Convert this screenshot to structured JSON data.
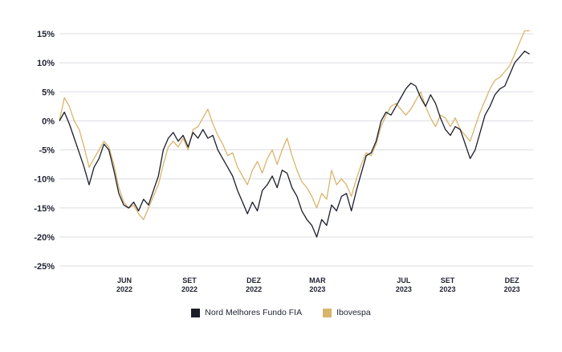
{
  "chart_data": {
    "type": "line",
    "ylim": [
      -25,
      15
    ],
    "yticks": [
      {
        "value": 15,
        "label": "15%"
      },
      {
        "value": 10,
        "label": "10%"
      },
      {
        "value": 5,
        "label": "5%"
      },
      {
        "value": 0,
        "label": "0%"
      },
      {
        "value": -5,
        "label": "-5%"
      },
      {
        "value": -10,
        "label": "-10%"
      },
      {
        "value": -15,
        "label": "-15%"
      },
      {
        "value": -20,
        "label": "-20%"
      },
      {
        "value": -25,
        "label": "-25%"
      }
    ],
    "xlim": [
      "2022-03-01",
      "2023-12-31"
    ],
    "xticks": [
      {
        "date": "2022-06-01",
        "month": "JUN",
        "year": "2022"
      },
      {
        "date": "2022-09-01",
        "month": "SET",
        "year": "2022"
      },
      {
        "date": "2022-12-01",
        "month": "DEZ",
        "year": "2022"
      },
      {
        "date": "2023-03-01",
        "month": "MAR",
        "year": "2023"
      },
      {
        "date": "2023-07-01",
        "month": "JUL",
        "year": "2023"
      },
      {
        "date": "2023-09-01",
        "month": "SET",
        "year": "2023"
      },
      {
        "date": "2023-12-01",
        "month": "DEZ",
        "year": "2023"
      }
    ],
    "grid": true,
    "legend_position": "bottom-center",
    "series": [
      {
        "name": "Nord Melhores Fundo FIA",
        "color": "#1b1d2b",
        "points": [
          [
            "2022-03-01",
            0.0
          ],
          [
            "2022-03-08",
            1.5
          ],
          [
            "2022-03-15",
            -0.5
          ],
          [
            "2022-03-22",
            -3.0
          ],
          [
            "2022-03-29",
            -5.5
          ],
          [
            "2022-04-05",
            -8.0
          ],
          [
            "2022-04-12",
            -11.0
          ],
          [
            "2022-04-19",
            -8.0
          ],
          [
            "2022-04-26",
            -6.5
          ],
          [
            "2022-05-03",
            -4.0
          ],
          [
            "2022-05-10",
            -5.0
          ],
          [
            "2022-05-17",
            -8.5
          ],
          [
            "2022-05-24",
            -12.5
          ],
          [
            "2022-05-31",
            -14.5
          ],
          [
            "2022-06-07",
            -15.0
          ],
          [
            "2022-06-14",
            -14.0
          ],
          [
            "2022-06-21",
            -15.5
          ],
          [
            "2022-06-28",
            -13.5
          ],
          [
            "2022-07-05",
            -14.5
          ],
          [
            "2022-07-12",
            -12.0
          ],
          [
            "2022-07-19",
            -9.5
          ],
          [
            "2022-07-26",
            -5.0
          ],
          [
            "2022-08-02",
            -3.0
          ],
          [
            "2022-08-09",
            -2.0
          ],
          [
            "2022-08-16",
            -3.5
          ],
          [
            "2022-08-23",
            -2.5
          ],
          [
            "2022-08-30",
            -4.5
          ],
          [
            "2022-09-06",
            -2.0
          ],
          [
            "2022-09-13",
            -3.0
          ],
          [
            "2022-09-20",
            -1.5
          ],
          [
            "2022-09-27",
            -3.0
          ],
          [
            "2022-10-04",
            -2.5
          ],
          [
            "2022-10-11",
            -5.0
          ],
          [
            "2022-10-18",
            -6.5
          ],
          [
            "2022-10-25",
            -8.0
          ],
          [
            "2022-11-01",
            -9.5
          ],
          [
            "2022-11-08",
            -12.0
          ],
          [
            "2022-11-15",
            -14.0
          ],
          [
            "2022-11-22",
            -16.0
          ],
          [
            "2022-11-29",
            -14.0
          ],
          [
            "2022-12-06",
            -15.5
          ],
          [
            "2022-12-13",
            -12.0
          ],
          [
            "2022-12-20",
            -11.0
          ],
          [
            "2022-12-27",
            -9.5
          ],
          [
            "2023-01-03",
            -11.5
          ],
          [
            "2023-01-10",
            -8.5
          ],
          [
            "2023-01-17",
            -9.0
          ],
          [
            "2023-01-24",
            -11.5
          ],
          [
            "2023-01-31",
            -13.0
          ],
          [
            "2023-02-07",
            -15.5
          ],
          [
            "2023-02-14",
            -17.0
          ],
          [
            "2023-02-21",
            -18.0
          ],
          [
            "2023-02-28",
            -20.0
          ],
          [
            "2023-03-07",
            -17.0
          ],
          [
            "2023-03-14",
            -18.0
          ],
          [
            "2023-03-21",
            -14.5
          ],
          [
            "2023-03-28",
            -15.5
          ],
          [
            "2023-04-04",
            -13.0
          ],
          [
            "2023-04-11",
            -12.5
          ],
          [
            "2023-04-18",
            -15.5
          ],
          [
            "2023-04-25",
            -12.0
          ],
          [
            "2023-05-02",
            -9.0
          ],
          [
            "2023-05-09",
            -6.0
          ],
          [
            "2023-05-16",
            -5.5
          ],
          [
            "2023-05-23",
            -3.5
          ],
          [
            "2023-05-30",
            0.0
          ],
          [
            "2023-06-06",
            1.5
          ],
          [
            "2023-06-13",
            1.0
          ],
          [
            "2023-06-20",
            2.5
          ],
          [
            "2023-06-27",
            4.0
          ],
          [
            "2023-07-04",
            5.5
          ],
          [
            "2023-07-11",
            6.5
          ],
          [
            "2023-07-18",
            6.0
          ],
          [
            "2023-07-25",
            4.0
          ],
          [
            "2023-08-01",
            2.5
          ],
          [
            "2023-08-08",
            4.5
          ],
          [
            "2023-08-15",
            3.0
          ],
          [
            "2023-08-22",
            0.5
          ],
          [
            "2023-08-29",
            -1.5
          ],
          [
            "2023-09-05",
            -2.5
          ],
          [
            "2023-09-12",
            -1.0
          ],
          [
            "2023-09-19",
            -1.5
          ],
          [
            "2023-09-26",
            -4.0
          ],
          [
            "2023-10-03",
            -6.5
          ],
          [
            "2023-10-10",
            -5.0
          ],
          [
            "2023-10-17",
            -2.0
          ],
          [
            "2023-10-24",
            1.0
          ],
          [
            "2023-10-31",
            2.5
          ],
          [
            "2023-11-07",
            4.5
          ],
          [
            "2023-11-14",
            5.5
          ],
          [
            "2023-11-21",
            6.0
          ],
          [
            "2023-11-28",
            8.0
          ],
          [
            "2023-12-05",
            10.0
          ],
          [
            "2023-12-12",
            11.0
          ],
          [
            "2023-12-19",
            12.0
          ],
          [
            "2023-12-26",
            11.5
          ]
        ]
      },
      {
        "name": "Ibovespa",
        "color": "#d9b46b",
        "points": [
          [
            "2022-03-01",
            0.0
          ],
          [
            "2022-03-08",
            4.0
          ],
          [
            "2022-03-15",
            2.5
          ],
          [
            "2022-03-22",
            0.0
          ],
          [
            "2022-03-29",
            -1.5
          ],
          [
            "2022-04-05",
            -4.5
          ],
          [
            "2022-04-12",
            -8.0
          ],
          [
            "2022-04-19",
            -6.5
          ],
          [
            "2022-04-26",
            -5.0
          ],
          [
            "2022-05-03",
            -3.5
          ],
          [
            "2022-05-10",
            -4.5
          ],
          [
            "2022-05-17",
            -7.5
          ],
          [
            "2022-05-24",
            -11.5
          ],
          [
            "2022-05-31",
            -14.0
          ],
          [
            "2022-06-07",
            -15.0
          ],
          [
            "2022-06-14",
            -14.5
          ],
          [
            "2022-06-21",
            -16.0
          ],
          [
            "2022-06-28",
            -17.0
          ],
          [
            "2022-07-05",
            -15.0
          ],
          [
            "2022-07-12",
            -13.0
          ],
          [
            "2022-07-19",
            -11.0
          ],
          [
            "2022-07-26",
            -7.5
          ],
          [
            "2022-08-02",
            -4.5
          ],
          [
            "2022-08-09",
            -3.5
          ],
          [
            "2022-08-16",
            -4.5
          ],
          [
            "2022-08-23",
            -3.0
          ],
          [
            "2022-08-30",
            -5.0
          ],
          [
            "2022-09-06",
            -1.5
          ],
          [
            "2022-09-13",
            -1.0
          ],
          [
            "2022-09-20",
            0.5
          ],
          [
            "2022-09-27",
            2.0
          ],
          [
            "2022-10-04",
            -0.5
          ],
          [
            "2022-10-11",
            -2.5
          ],
          [
            "2022-10-18",
            -4.0
          ],
          [
            "2022-10-25",
            -6.0
          ],
          [
            "2022-11-01",
            -5.5
          ],
          [
            "2022-11-08",
            -8.0
          ],
          [
            "2022-11-15",
            -9.5
          ],
          [
            "2022-11-22",
            -11.0
          ],
          [
            "2022-11-29",
            -8.5
          ],
          [
            "2022-12-06",
            -7.0
          ],
          [
            "2022-12-13",
            -9.0
          ],
          [
            "2022-12-20",
            -6.5
          ],
          [
            "2022-12-27",
            -5.0
          ],
          [
            "2023-01-03",
            -7.5
          ],
          [
            "2023-01-10",
            -5.0
          ],
          [
            "2023-01-17",
            -3.0
          ],
          [
            "2023-01-24",
            -6.0
          ],
          [
            "2023-01-31",
            -8.5
          ],
          [
            "2023-02-07",
            -10.5
          ],
          [
            "2023-02-14",
            -11.5
          ],
          [
            "2023-02-21",
            -13.0
          ],
          [
            "2023-02-28",
            -15.0
          ],
          [
            "2023-03-07",
            -12.5
          ],
          [
            "2023-03-14",
            -13.5
          ],
          [
            "2023-03-21",
            -8.5
          ],
          [
            "2023-03-28",
            -11.0
          ],
          [
            "2023-04-04",
            -10.0
          ],
          [
            "2023-04-11",
            -11.0
          ],
          [
            "2023-04-18",
            -13.0
          ],
          [
            "2023-04-25",
            -10.0
          ],
          [
            "2023-05-02",
            -7.5
          ],
          [
            "2023-05-09",
            -5.5
          ],
          [
            "2023-05-16",
            -6.0
          ],
          [
            "2023-05-23",
            -4.0
          ],
          [
            "2023-05-30",
            -1.0
          ],
          [
            "2023-06-06",
            1.0
          ],
          [
            "2023-06-13",
            2.5
          ],
          [
            "2023-06-20",
            3.0
          ],
          [
            "2023-06-27",
            2.0
          ],
          [
            "2023-07-04",
            1.0
          ],
          [
            "2023-07-11",
            2.0
          ],
          [
            "2023-07-18",
            3.5
          ],
          [
            "2023-07-25",
            5.0
          ],
          [
            "2023-08-01",
            2.5
          ],
          [
            "2023-08-08",
            0.5
          ],
          [
            "2023-08-15",
            -1.0
          ],
          [
            "2023-08-22",
            1.0
          ],
          [
            "2023-08-29",
            0.5
          ],
          [
            "2023-09-05",
            -1.0
          ],
          [
            "2023-09-12",
            0.5
          ],
          [
            "2023-09-19",
            -1.5
          ],
          [
            "2023-09-26",
            -2.5
          ],
          [
            "2023-10-03",
            -3.5
          ],
          [
            "2023-10-10",
            -1.0
          ],
          [
            "2023-10-17",
            1.5
          ],
          [
            "2023-10-24",
            3.5
          ],
          [
            "2023-10-31",
            5.5
          ],
          [
            "2023-11-07",
            7.0
          ],
          [
            "2023-11-14",
            7.5
          ],
          [
            "2023-11-21",
            8.5
          ],
          [
            "2023-11-28",
            9.5
          ],
          [
            "2023-12-05",
            11.5
          ],
          [
            "2023-12-12",
            13.5
          ],
          [
            "2023-12-19",
            15.5
          ],
          [
            "2023-12-26",
            15.5
          ]
        ]
      }
    ]
  }
}
